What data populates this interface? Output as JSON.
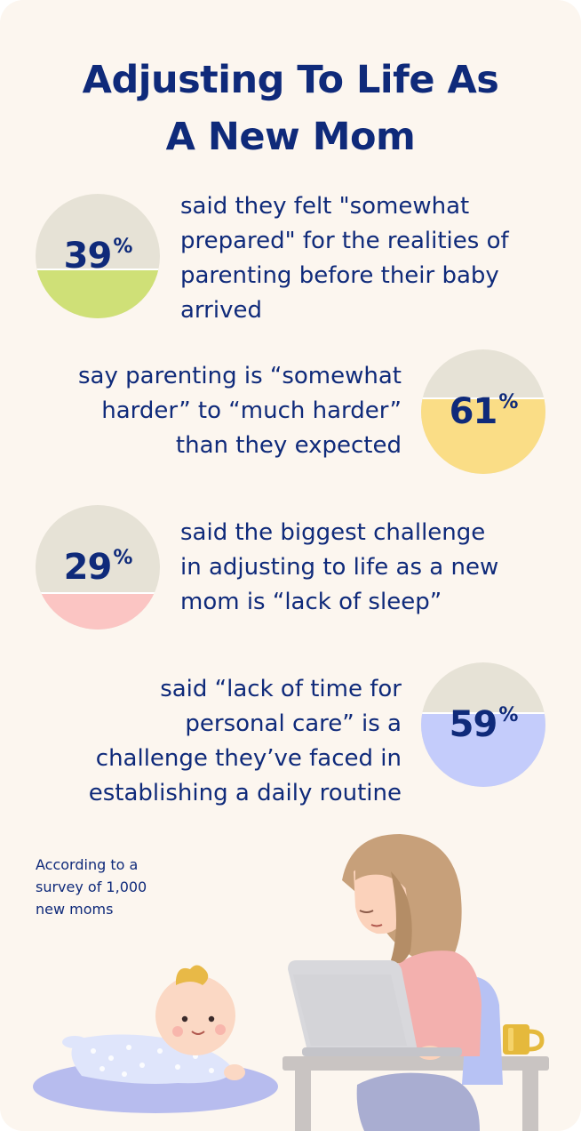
{
  "title": {
    "line1": "Adjusting To Life As",
    "line2": "A New Mom"
  },
  "stats": [
    {
      "percent": "39",
      "percent_value": 39,
      "symbol": "%",
      "fill_color": "#cfe077",
      "lines": [
        "said they felt \"somewhat",
        "prepared\" for the realities of",
        "parenting before their baby",
        "arrived"
      ]
    },
    {
      "percent": "61",
      "percent_value": 61,
      "symbol": "%",
      "fill_color": "#fadd86",
      "lines": [
        "say parenting is “somewhat",
        "harder” to “much harder”",
        "than they expected"
      ]
    },
    {
      "percent": "29",
      "percent_value": 29,
      "symbol": "%",
      "fill_color": "#fbc5c3",
      "lines": [
        "said the biggest challenge",
        "in adjusting to life as a new",
        "mom is “lack of sleep”"
      ]
    },
    {
      "percent": "59",
      "percent_value": 59,
      "symbol": "%",
      "fill_color": "#c4ccfb",
      "lines": [
        "said “lack of time for",
        "personal care” is a",
        "challenge they’ve faced in",
        "establishing a daily routine"
      ]
    }
  ],
  "source_note": {
    "lines": [
      "According to a",
      "survey of 1,000",
      "new moms"
    ]
  },
  "illustration": {
    "mom": "mom-at-laptop-illustration",
    "baby": "baby-on-mat-illustration",
    "mug": "mug-icon"
  },
  "colors": {
    "background": "#fcf6ef",
    "text": "#0f2a7a",
    "circle_base": "#e6e2d6"
  }
}
